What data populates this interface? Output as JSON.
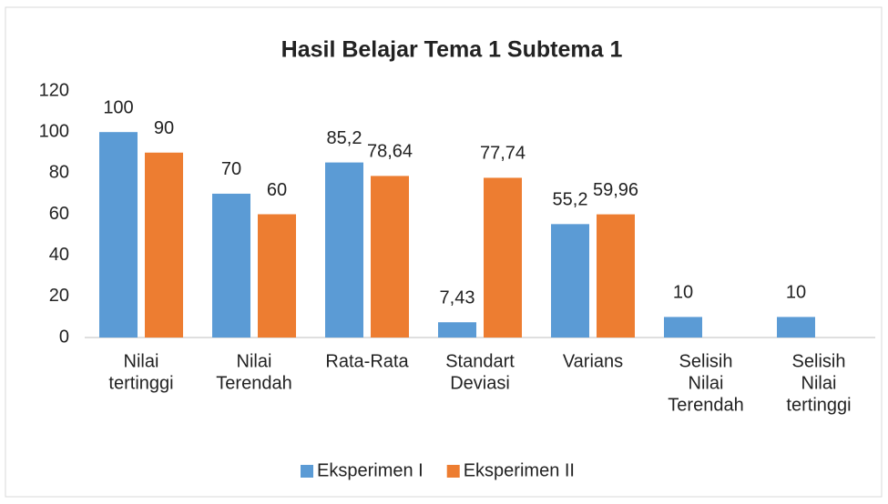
{
  "chart_data": {
    "type": "bar",
    "title": "Hasil Belajar Tema 1 Subtema 1",
    "categories": [
      [
        "Nilai",
        "tertinggi"
      ],
      [
        "Nilai",
        "Terendah"
      ],
      [
        "Rata-Rata"
      ],
      [
        "Standart",
        "Deviasi"
      ],
      [
        "Varians"
      ],
      [
        "Selisih",
        "Nilai",
        "Terendah"
      ],
      [
        "Selisih",
        "Nilai",
        "tertinggi"
      ]
    ],
    "series": [
      {
        "name": "Eksperimen I",
        "color": "#5b9bd5",
        "values": [
          100,
          70,
          85.2,
          7.43,
          55.2,
          10,
          10
        ],
        "value_labels": [
          "100",
          "70",
          "85,2",
          "7,43",
          "55,2",
          "10",
          "10"
        ]
      },
      {
        "name": "Eksperimen II",
        "color": "#ed7d31",
        "values": [
          90,
          60,
          78.64,
          77.74,
          59.96,
          null,
          null
        ],
        "value_labels": [
          "90",
          "60",
          "78,64",
          "77,74",
          "59,96",
          null,
          null
        ]
      }
    ],
    "ylim": [
      0,
      120
    ],
    "yticks": [
      0,
      20,
      40,
      60,
      80,
      100,
      120
    ],
    "grid": false,
    "legend": "bottom"
  }
}
